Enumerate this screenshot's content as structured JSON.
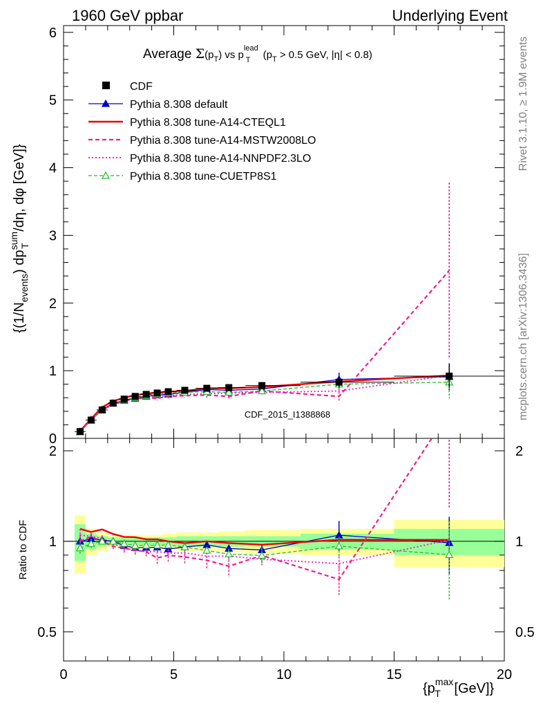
{
  "header": {
    "left": "1960 GeV ppbar",
    "right": "Underlying Event"
  },
  "side_labels": {
    "rivet": "Rivet 3.1.10, ≥ 1.9M events",
    "mcplots": "mcplots.cern.ch [arXiv:1306.3436]"
  },
  "chart_data": {
    "type": "line",
    "title": "Average Σ(pT) vs pTlead (pT > 0.5 GeV, |η| < 0.8)",
    "title_parts": {
      "a": "Average ",
      "sigma": "Σ",
      "b": "(p",
      "bsub": "T",
      "c": ") vs p",
      "csup": "lead",
      "csub": "T",
      "d": " (p",
      "dsub": "T",
      "e": " > 0.5 GeV, |η| < 0.8)"
    },
    "watermark": "CDF_2015_I1388868",
    "ylabel": "{(1/Nevents) dpTsum/dη, dφ [GeV]}",
    "ylabel_parts": {
      "a": "{(1/N",
      "asub": "events",
      "b": ") dp",
      "bsup": "sum",
      "bsub": "T",
      "c": " /dη, dφ [GeV]}"
    },
    "xlabel": "{pTmax [GeV]}",
    "xlabel_parts": {
      "a": "{p",
      "sup": "max",
      "sub": "T",
      "b": " [GeV]}"
    },
    "ratio_ylabel": "Ratio to CDF",
    "xlim": [
      0,
      20
    ],
    "ylim": [
      0,
      6.1
    ],
    "ratio_ylim": [
      0.4,
      2.2
    ],
    "x_ticks": [
      0,
      5,
      10,
      15,
      20
    ],
    "y_ticks": [
      0,
      1,
      2,
      3,
      4,
      5,
      6
    ],
    "ratio_ticks": [
      0.5,
      1,
      2
    ],
    "legend_position": "top-left",
    "grid": false,
    "x": [
      0.75,
      1.25,
      1.75,
      2.25,
      2.75,
      3.25,
      3.75,
      4.25,
      4.75,
      5.5,
      6.5,
      7.5,
      9.0,
      12.5,
      17.5
    ],
    "data": {
      "name": "CDF",
      "values": [
        0.1,
        0.27,
        0.42,
        0.52,
        0.58,
        0.62,
        0.65,
        0.67,
        0.69,
        0.71,
        0.74,
        0.75,
        0.78,
        0.83,
        0.92
      ],
      "err": [
        0.01,
        0.02,
        0.02,
        0.02,
        0.02,
        0.02,
        0.02,
        0.02,
        0.02,
        0.02,
        0.03,
        0.03,
        0.03,
        0.08,
        0.17
      ],
      "band_stat": [
        0.14,
        0.06,
        0.04,
        0.03,
        0.03,
        0.03,
        0.03,
        0.03,
        0.03,
        0.04,
        0.04,
        0.04,
        0.04,
        0.06,
        0.1
      ],
      "band_tot": [
        0.22,
        0.1,
        0.07,
        0.05,
        0.05,
        0.05,
        0.05,
        0.05,
        0.06,
        0.07,
        0.07,
        0.08,
        0.09,
        0.1,
        0.18
      ]
    },
    "series": [
      {
        "name": "Pythia 8.308 default",
        "color": "#0000cc",
        "dash": "",
        "width": 1.3,
        "marker": "triangle-filled",
        "values": [
          0.1,
          0.275,
          0.425,
          0.52,
          0.56,
          0.59,
          0.62,
          0.64,
          0.65,
          0.68,
          0.72,
          0.71,
          0.73,
          0.87,
          0.91
        ],
        "err": [
          0.005,
          0.01,
          0.01,
          0.01,
          0.01,
          0.01,
          0.01,
          0.01,
          0.01,
          0.01,
          0.02,
          0.02,
          0.03,
          0.1,
          0.2
        ]
      },
      {
        "name": "Pythia 8.308 tune-A14-CTEQL1",
        "color": "#ee0000",
        "dash": "",
        "width": 2.4,
        "marker": "none",
        "values": [
          0.11,
          0.29,
          0.46,
          0.55,
          0.6,
          0.64,
          0.66,
          0.68,
          0.69,
          0.7,
          0.74,
          0.74,
          0.76,
          0.84,
          0.93
        ],
        "err": [
          0,
          0,
          0,
          0,
          0,
          0,
          0,
          0,
          0,
          0,
          0,
          0,
          0,
          0,
          0
        ]
      },
      {
        "name": "Pythia 8.308 tune-A14-MSTW2008LO",
        "color": "#ee1f8c",
        "dash": "6,4",
        "width": 2.2,
        "marker": "none",
        "values": [
          0.1,
          0.28,
          0.42,
          0.5,
          0.55,
          0.58,
          0.6,
          0.59,
          0.62,
          0.63,
          0.64,
          0.62,
          0.7,
          0.62,
          2.48
        ],
        "err": [
          0.005,
          0.01,
          0.01,
          0.01,
          0.02,
          0.02,
          0.02,
          0.03,
          0.03,
          0.03,
          0.04,
          0.05,
          0.05,
          0.07,
          1.3
        ]
      },
      {
        "name": "Pythia 8.308 tune-A14-NNPDF2.3LO",
        "color": "#ee22cc",
        "dash": "2,3",
        "width": 2.0,
        "marker": "none",
        "values": [
          0.105,
          0.28,
          0.43,
          0.51,
          0.55,
          0.58,
          0.6,
          0.62,
          0.63,
          0.65,
          0.66,
          0.67,
          0.68,
          0.7,
          0.93
        ],
        "err": [
          0.005,
          0.01,
          0.01,
          0.01,
          0.01,
          0.01,
          0.01,
          0.01,
          0.02,
          0.02,
          0.02,
          0.03,
          0.03,
          0.04,
          0.08
        ]
      },
      {
        "name": "Pythia 8.308 tune-CUETP8S1",
        "color": "#22bb22",
        "dash": "5,3",
        "width": 1.3,
        "marker": "triangle-open",
        "values": [
          0.095,
          0.265,
          0.42,
          0.52,
          0.57,
          0.6,
          0.63,
          0.65,
          0.67,
          0.68,
          0.69,
          0.68,
          0.7,
          0.8,
          0.83
        ],
        "err": [
          0.005,
          0.01,
          0.01,
          0.01,
          0.01,
          0.01,
          0.01,
          0.01,
          0.01,
          0.02,
          0.02,
          0.03,
          0.04,
          0.06,
          0.24
        ]
      }
    ]
  }
}
